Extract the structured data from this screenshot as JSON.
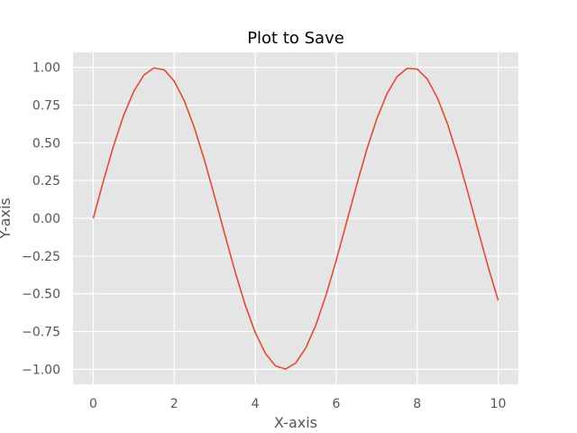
{
  "chart_data": {
    "type": "line",
    "title": "Plot to Save",
    "xlabel": "X-axis",
    "ylabel": "Y-axis",
    "xlim": [
      -0.5,
      10.5
    ],
    "ylim": [
      -1.1,
      1.1
    ],
    "xticks": [
      0,
      2,
      4,
      6,
      8,
      10
    ],
    "xtick_labels": [
      "0",
      "2",
      "4",
      "6",
      "8",
      "10"
    ],
    "yticks": [
      -1.0,
      -0.75,
      -0.5,
      -0.25,
      0.0,
      0.25,
      0.5,
      0.75,
      1.0
    ],
    "ytick_labels": [
      "−1.00",
      "−0.75",
      "−0.50",
      "−0.25",
      "0.00",
      "0.25",
      "0.50",
      "0.75",
      "1.00"
    ],
    "grid": true,
    "colors": {
      "background": "#e5e5e5",
      "grid": "#ffffff",
      "line": "#e24a33"
    },
    "series": [
      {
        "x": [
          0,
          0.25,
          0.5,
          0.75,
          1.0,
          1.25,
          1.5,
          1.75,
          2.0,
          2.25,
          2.5,
          2.75,
          3.0,
          3.25,
          3.5,
          3.75,
          4.0,
          4.25,
          4.5,
          4.75,
          5.0,
          5.25,
          5.5,
          5.75,
          6.0,
          6.25,
          6.5,
          6.75,
          7.0,
          7.25,
          7.5,
          7.75,
          8.0,
          8.25,
          8.5,
          8.75,
          9.0,
          9.25,
          9.5,
          9.75,
          10.0
        ],
        "y": [
          0.0,
          0.247,
          0.479,
          0.682,
          0.841,
          0.949,
          0.997,
          0.984,
          0.909,
          0.778,
          0.598,
          0.382,
          0.141,
          -0.108,
          -0.351,
          -0.572,
          -0.757,
          -0.895,
          -0.978,
          -0.999,
          -0.959,
          -0.859,
          -0.706,
          -0.508,
          -0.279,
          -0.033,
          0.215,
          0.451,
          0.657,
          0.823,
          0.938,
          0.994,
          0.989,
          0.923,
          0.798,
          0.625,
          0.412,
          0.173,
          -0.075,
          -0.319,
          -0.544
        ]
      }
    ]
  }
}
